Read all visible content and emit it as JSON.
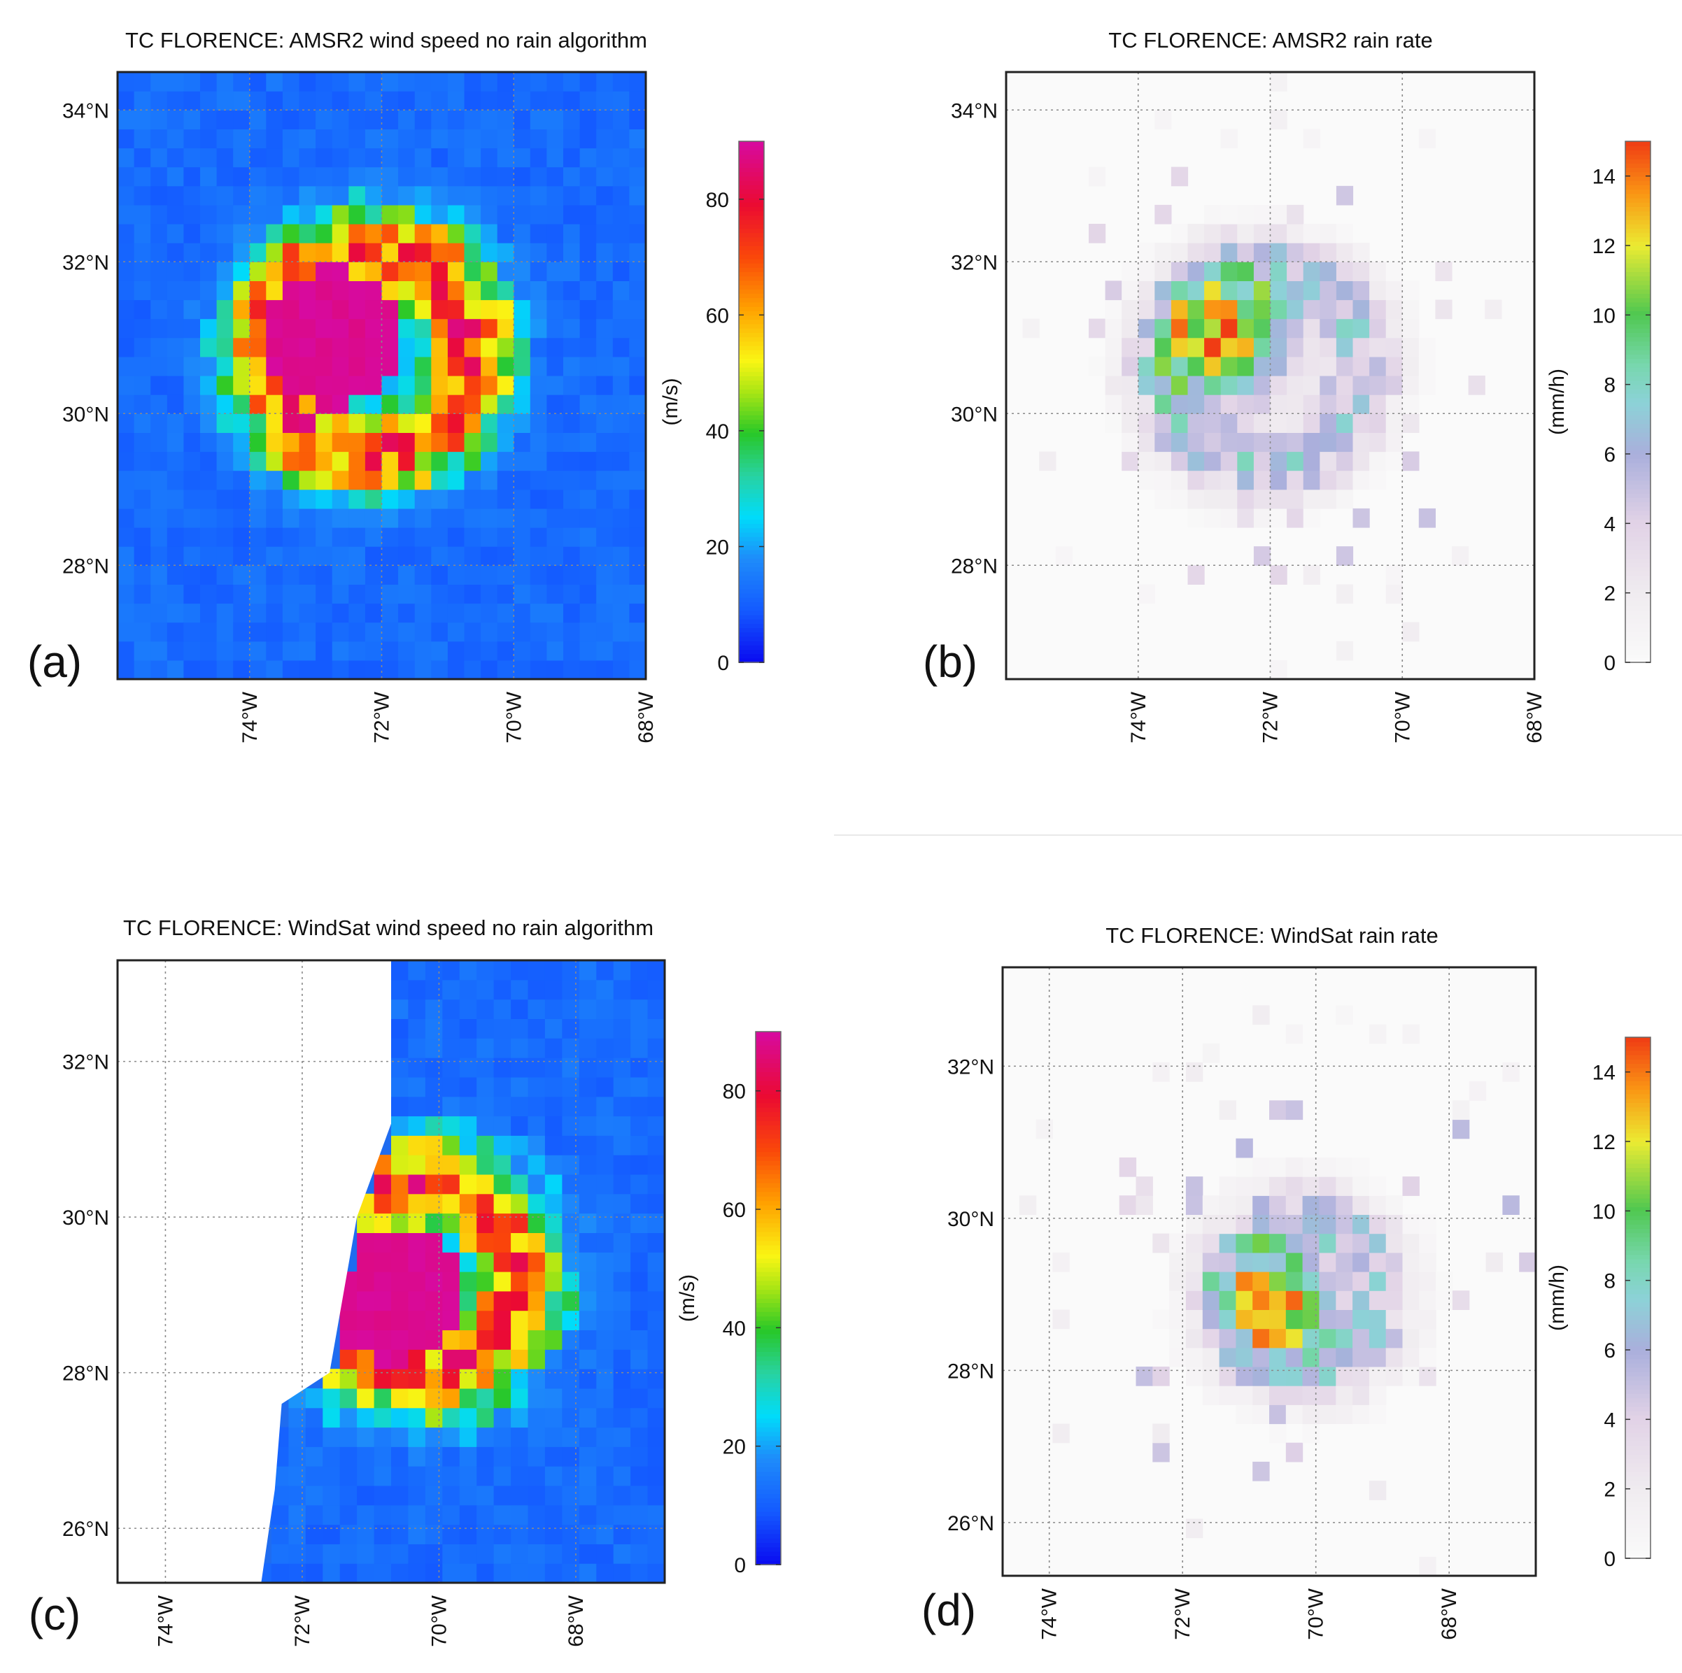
{
  "figure": {
    "panels": [
      {
        "id": "a",
        "panel_label": "(a)",
        "title": "TC FLORENCE: AMSR2 wind speed no rain algorithm",
        "variable": "wind",
        "colormap": "jet_magenta",
        "xlim": [
          -76,
          -68
        ],
        "ylim": [
          26.5,
          34.5
        ],
        "lat_ticks": [
          {
            "v": 34,
            "label": "34°N"
          },
          {
            "v": 32,
            "label": "32°N"
          },
          {
            "v": 30,
            "label": "30°N"
          },
          {
            "v": 28,
            "label": "28°N"
          }
        ],
        "lon_ticks": [
          {
            "v": -74,
            "label": "74°W"
          },
          {
            "v": -72,
            "label": "72°W"
          },
          {
            "v": -70,
            "label": "70°W"
          },
          {
            "v": -68,
            "label": "68°W"
          }
        ],
        "colorbar": {
          "label": "(m/s)",
          "min": 0,
          "max": 90,
          "ticks": [
            0,
            20,
            40,
            60,
            80
          ]
        },
        "storm": {
          "lon": -72.2,
          "lat": 30.8,
          "eye_lon": -72.7,
          "eye_lat": 31.0,
          "peak": 90,
          "eye_radius": 0.9,
          "ring_radius": 1.3,
          "ring_width": 0.55,
          "rain_peak": 14.5
        },
        "invalid_region": []
      },
      {
        "id": "b",
        "panel_label": "(b)",
        "title": "TC FLORENCE: AMSR2 rain rate",
        "variable": "rain",
        "colormap": "rain",
        "xlim": [
          -76,
          -68
        ],
        "ylim": [
          26.5,
          34.5
        ],
        "lat_ticks": [
          {
            "v": 34,
            "label": "34°N"
          },
          {
            "v": 32,
            "label": "32°N"
          },
          {
            "v": 30,
            "label": "30°N"
          },
          {
            "v": 28,
            "label": "28°N"
          }
        ],
        "lon_ticks": [
          {
            "v": -74,
            "label": "74°W"
          },
          {
            "v": -72,
            "label": "72°W"
          },
          {
            "v": -70,
            "label": "70°W"
          },
          {
            "v": -68,
            "label": "68°W"
          }
        ],
        "colorbar": {
          "label": "(mm/h)",
          "min": 0,
          "max": 15,
          "ticks": [
            0,
            2,
            4,
            6,
            8,
            10,
            12,
            14
          ]
        },
        "storm": {
          "lon": -72.1,
          "lat": 30.6,
          "eye_lon": -72.6,
          "eye_lat": 31.0,
          "peak": 14.5,
          "eye_radius": 0.5,
          "ring_radius": 1.3,
          "ring_width": 0.5,
          "rain_peak": 14.5
        },
        "invalid_region": []
      },
      {
        "id": "c",
        "panel_label": "(c)",
        "title": "TC FLORENCE: WindSat wind speed no rain algorithm",
        "variable": "wind",
        "colormap": "jet_magenta",
        "xlim": [
          -74.7,
          -66.7
        ],
        "ylim": [
          25.3,
          33.3
        ],
        "lat_ticks": [
          {
            "v": 32,
            "label": "32°N"
          },
          {
            "v": 30,
            "label": "30°N"
          },
          {
            "v": 28,
            "label": "28°N"
          },
          {
            "v": 26,
            "label": "26°N"
          }
        ],
        "lon_ticks": [
          {
            "v": -74,
            "label": "74°W"
          },
          {
            "v": -72,
            "label": "72°W"
          },
          {
            "v": -70,
            "label": "70°W"
          },
          {
            "v": -68,
            "label": "68°W"
          }
        ],
        "colorbar": {
          "label": "(m/s)",
          "min": 0,
          "max": 90,
          "ticks": [
            0,
            20,
            40,
            60,
            80
          ]
        },
        "storm": {
          "lon": -70.3,
          "lat": 29.2,
          "eye_lon": -70.6,
          "eye_lat": 29.0,
          "peak": 90,
          "eye_radius": 0.85,
          "ring_radius": 1.2,
          "ring_width": 0.55,
          "rain_peak": 14.5
        },
        "invalid_region": [
          [
            -74.7,
            33.3
          ],
          [
            -70.7,
            33.3
          ],
          [
            -70.7,
            31.2
          ],
          [
            -71.2,
            30.0
          ],
          [
            -71.6,
            28.0
          ],
          [
            -72.3,
            27.6
          ],
          [
            -72.4,
            26.5
          ],
          [
            -72.6,
            25.3
          ],
          [
            -74.7,
            25.3
          ]
        ]
      },
      {
        "id": "d",
        "panel_label": "(d)",
        "title": "TC FLORENCE: WindSat rain rate",
        "variable": "rain",
        "colormap": "rain",
        "xlim": [
          -74.7,
          -66.7
        ],
        "ylim": [
          25.3,
          33.3
        ],
        "lat_ticks": [
          {
            "v": 32,
            "label": "32°N"
          },
          {
            "v": 30,
            "label": "30°N"
          },
          {
            "v": 28,
            "label": "28°N"
          },
          {
            "v": 26,
            "label": "26°N"
          }
        ],
        "lon_ticks": [
          {
            "v": -74,
            "label": "74°W"
          },
          {
            "v": -72,
            "label": "72°W"
          },
          {
            "v": -70,
            "label": "70°W"
          },
          {
            "v": -68,
            "label": "68°W"
          }
        ],
        "colorbar": {
          "label": "(mm/h)",
          "min": 0,
          "max": 15,
          "ticks": [
            0,
            2,
            4,
            6,
            8,
            10,
            12,
            14
          ]
        },
        "storm": {
          "lon": -70.2,
          "lat": 29.0,
          "eye_lon": -70.5,
          "eye_lat": 28.9,
          "peak": 14.0,
          "eye_radius": 0.4,
          "ring_radius": 1.0,
          "ring_width": 0.5,
          "rain_peak": 14.0
        },
        "invalid_region": []
      }
    ]
  },
  "chart_data": [
    {
      "type": "heatmap",
      "title": "TC FLORENCE: AMSR2 wind speed no rain algorithm",
      "panel": "(a)",
      "x_axis": "longitude",
      "y_axis": "latitude",
      "x_ticks": [
        "74°W",
        "72°W",
        "70°W",
        "68°W"
      ],
      "y_ticks": [
        "34°N",
        "32°N",
        "30°N",
        "28°N"
      ],
      "xlim": [
        -76,
        -68
      ],
      "ylim": [
        26.5,
        34.5
      ],
      "colorbar_label": "(m/s)",
      "colorbar_range": [
        0,
        90
      ],
      "colorbar_ticks": [
        0,
        20,
        40,
        60,
        80
      ],
      "max_value_approx": 90,
      "storm_center_approx": {
        "lon": -72.2,
        "lat": 30.8
      }
    },
    {
      "type": "heatmap",
      "title": "TC FLORENCE: AMSR2 rain rate",
      "panel": "(b)",
      "x_axis": "longitude",
      "y_axis": "latitude",
      "x_ticks": [
        "74°W",
        "72°W",
        "70°W",
        "68°W"
      ],
      "y_ticks": [
        "34°N",
        "32°N",
        "30°N",
        "28°N"
      ],
      "xlim": [
        -76,
        -68
      ],
      "ylim": [
        26.5,
        34.5
      ],
      "colorbar_label": "(mm/h)",
      "colorbar_range": [
        0,
        15
      ],
      "colorbar_ticks": [
        0,
        2,
        4,
        6,
        8,
        10,
        12,
        14
      ],
      "max_value_approx": 14.5,
      "storm_center_approx": {
        "lon": -72.1,
        "lat": 30.6
      }
    },
    {
      "type": "heatmap",
      "title": "TC FLORENCE: WindSat wind speed no rain algorithm",
      "panel": "(c)",
      "x_axis": "longitude",
      "y_axis": "latitude",
      "x_ticks": [
        "74°W",
        "72°W",
        "70°W",
        "68°W"
      ],
      "y_ticks": [
        "32°N",
        "30°N",
        "28°N",
        "26°N"
      ],
      "xlim": [
        -74.7,
        -66.7
      ],
      "ylim": [
        25.3,
        33.3
      ],
      "colorbar_label": "(m/s)",
      "colorbar_range": [
        0,
        90
      ],
      "colorbar_ticks": [
        0,
        20,
        40,
        60,
        80
      ],
      "max_value_approx": 90,
      "storm_center_approx": {
        "lon": -70.3,
        "lat": 29.2
      }
    },
    {
      "type": "heatmap",
      "title": "TC FLORENCE: WindSat rain rate",
      "panel": "(d)",
      "x_axis": "longitude",
      "y_axis": "latitude",
      "x_ticks": [
        "74°W",
        "72°W",
        "70°W",
        "68°W"
      ],
      "y_ticks": [
        "32°N",
        "30°N",
        "28°N",
        "26°N"
      ],
      "xlim": [
        -74.7,
        -66.7
      ],
      "ylim": [
        25.3,
        33.3
      ],
      "colorbar_label": "(mm/h)",
      "colorbar_range": [
        0,
        15
      ],
      "colorbar_ticks": [
        0,
        2,
        4,
        6,
        8,
        10,
        12,
        14
      ],
      "max_value_approx": 14.0,
      "storm_center_approx": {
        "lon": -70.2,
        "lat": 29.0
      }
    }
  ]
}
